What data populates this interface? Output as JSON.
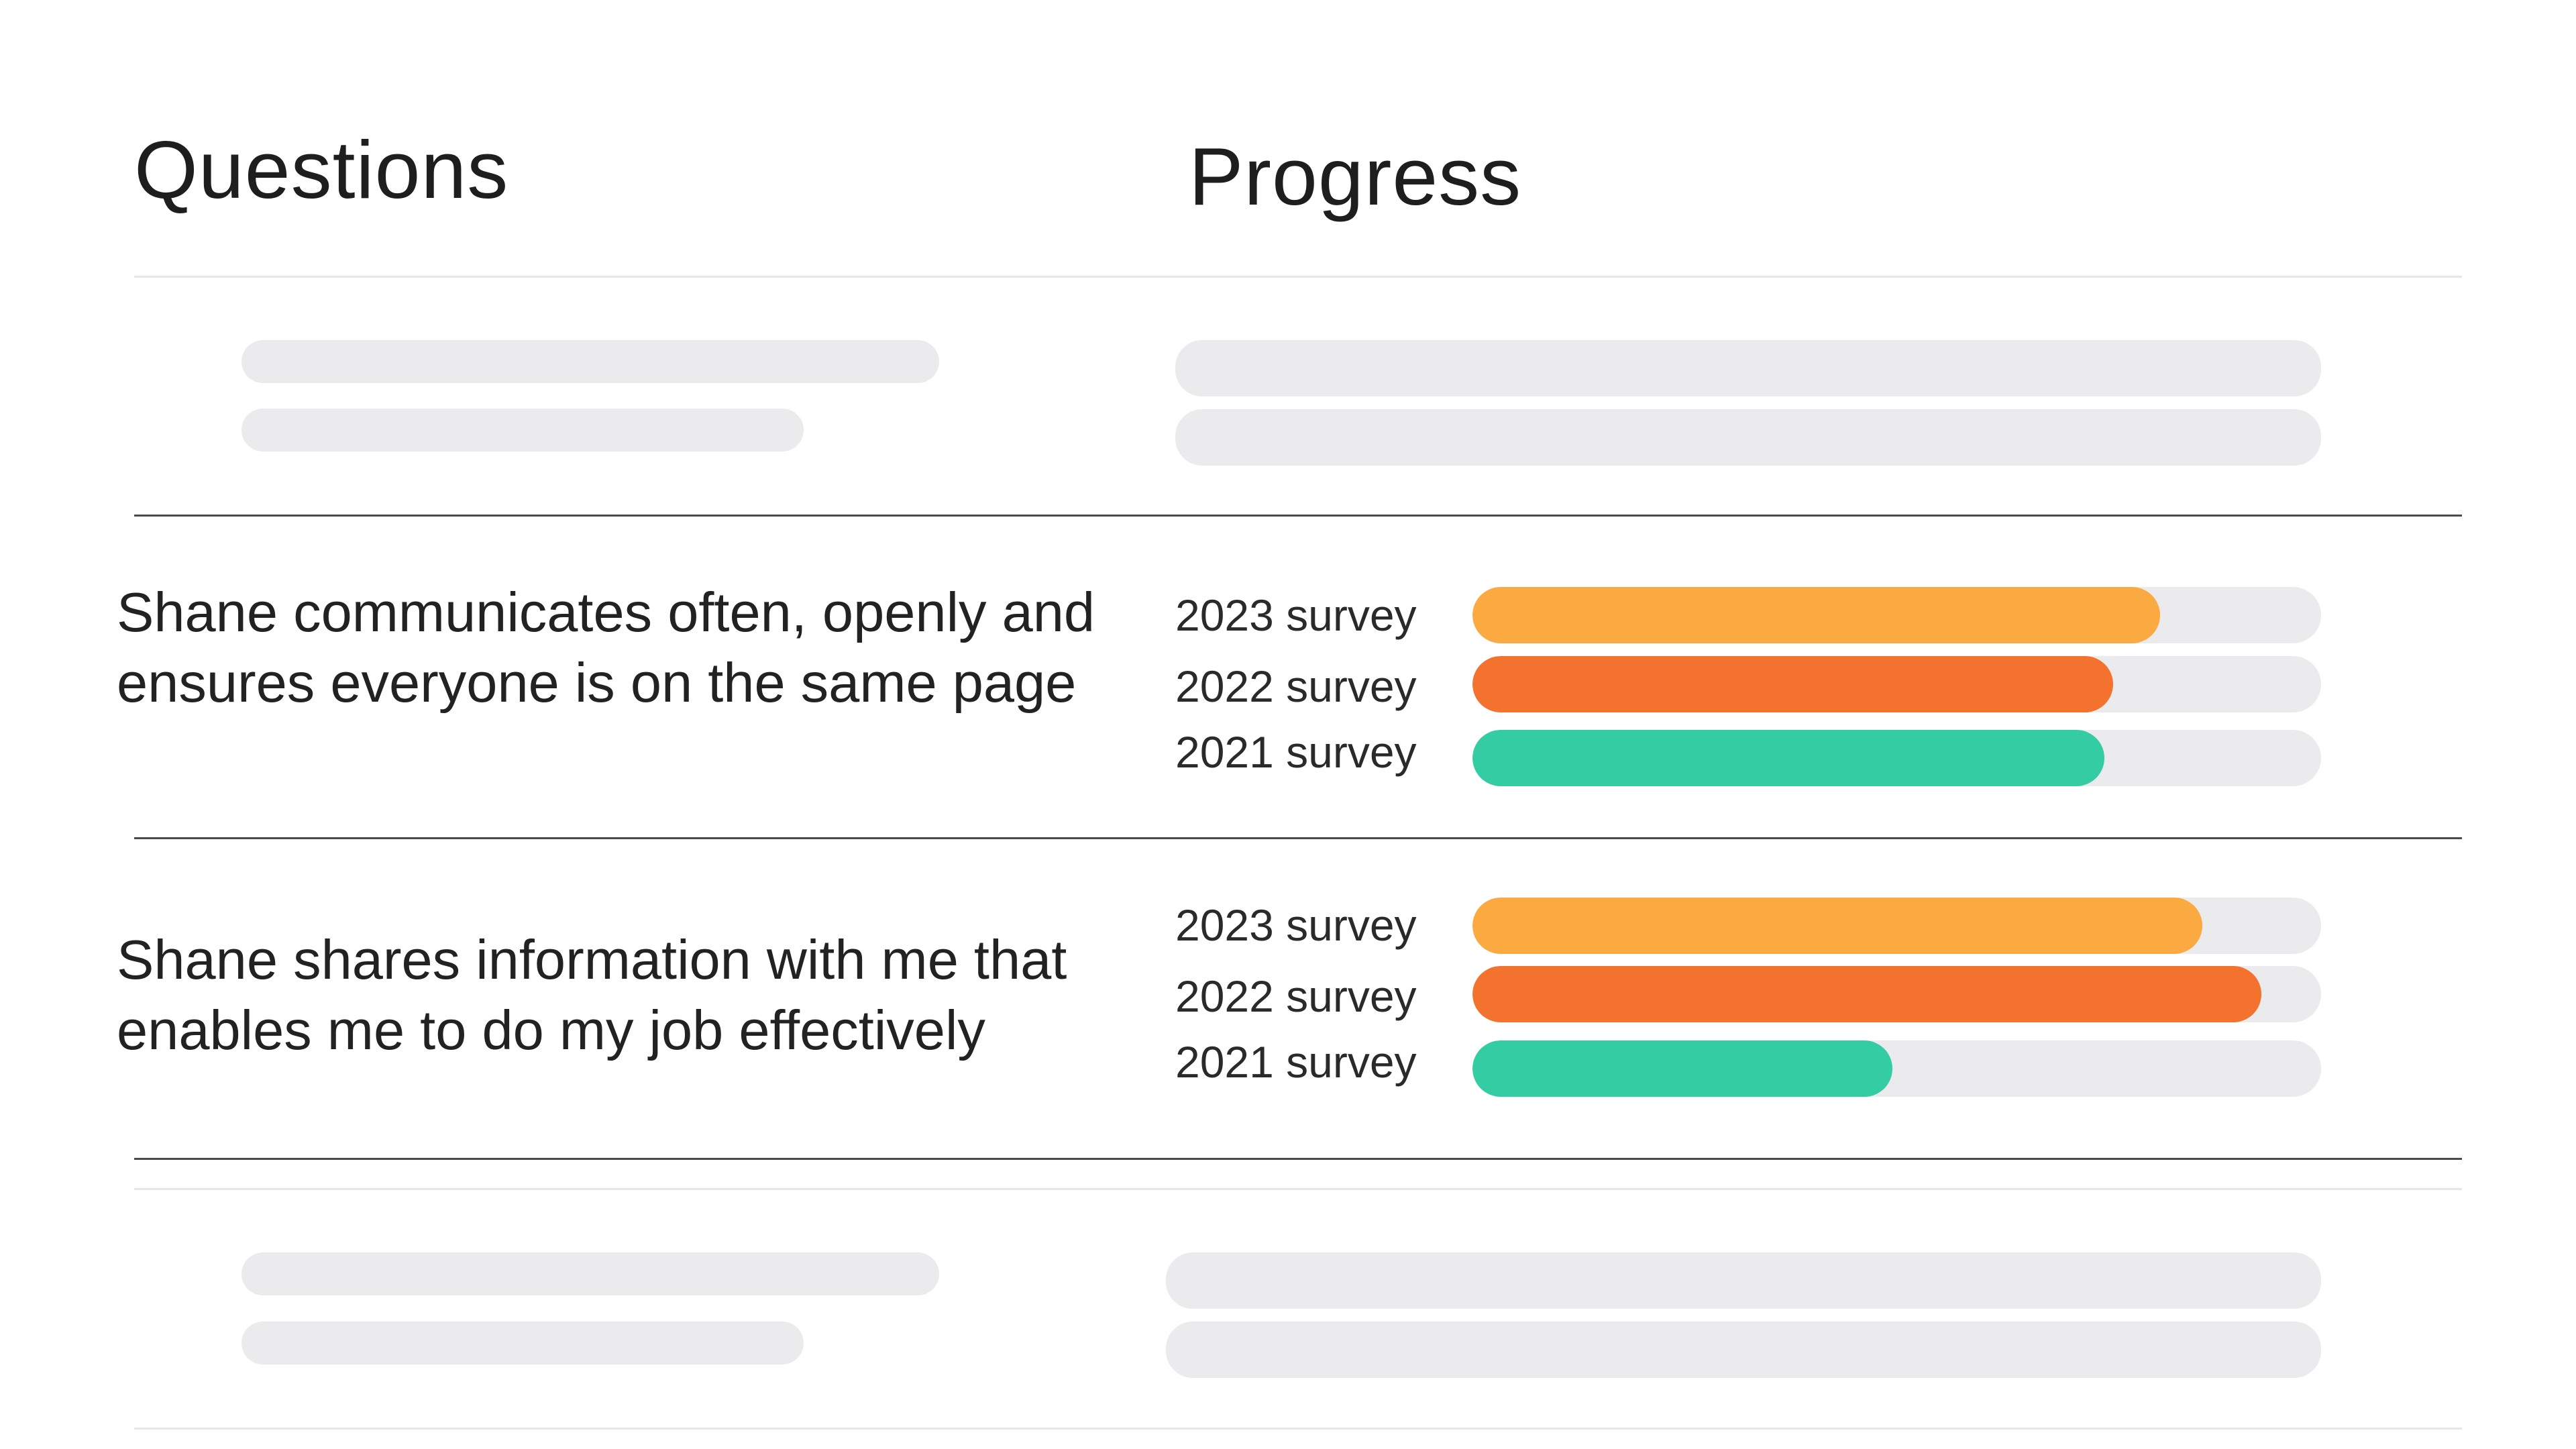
{
  "header": {
    "questions_label": "Questions",
    "progress_label": "Progress"
  },
  "colors": {
    "survey_2023": "#FBA941",
    "survey_2022": "#F2722E",
    "survey_2021": "#33CCA3",
    "track": "#EBEBED",
    "placeholder": "#EBEBED"
  },
  "questions": [
    {
      "text": "Shane communicates often, openly and ensures everyone is on the same page",
      "surveys": [
        {
          "label": "2023 survey",
          "value": 0.81,
          "color_key": "survey_2023"
        },
        {
          "label": "2022 survey",
          "value": 0.755,
          "color_key": "survey_2022"
        },
        {
          "label": "2021 survey",
          "value": 0.745,
          "color_key": "survey_2021"
        }
      ]
    },
    {
      "text": "Shane shares information with me that enables me to do my job effectively",
      "surveys": [
        {
          "label": "2023 survey",
          "value": 0.86,
          "color_key": "survey_2023"
        },
        {
          "label": "2022 survey",
          "value": 0.93,
          "color_key": "survey_2022"
        },
        {
          "label": "2021 survey",
          "value": 0.495,
          "color_key": "survey_2021"
        }
      ]
    }
  ]
}
